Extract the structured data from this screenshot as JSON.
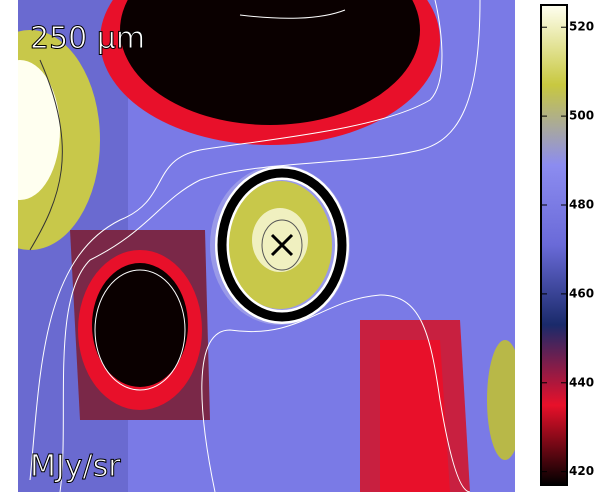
{
  "chart_data": {
    "type": "image",
    "band_label": "250  μm",
    "unit_label": "MJy/sr",
    "colorbar": {
      "clim": [
        417,
        525
      ],
      "ticks": [
        420,
        440,
        460,
        480,
        500,
        520
      ],
      "colormap": [
        "#000000",
        "#e8102a",
        "#1a2a6a",
        "#6a6ad8",
        "#8c8cf0",
        "#c8c840",
        "#fffff0"
      ]
    }
  }
}
